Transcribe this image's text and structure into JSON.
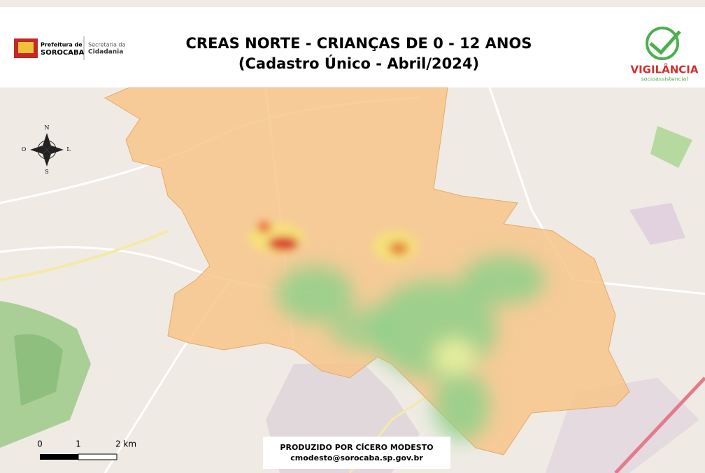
{
  "header": {
    "title_line1": "CREAS NORTE - CRIANÇAS DE 0 - 12 ANOS",
    "title_line2": "(Cadastro Único - Abril/2024)",
    "left_logo": {
      "line1": "Prefeitura de",
      "line2": "SOROCABA",
      "dept1": "Secretaria da",
      "dept2": "Cidadania"
    },
    "right_logo": {
      "name": "VIGILÂNCIA",
      "subtitle": "socioassistencial"
    }
  },
  "map": {
    "compass": {
      "n": "N",
      "s": "S",
      "w": "O",
      "e": "L"
    },
    "scale": {
      "labels": [
        "0",
        "1",
        "2 km"
      ]
    },
    "credit": {
      "line1": "PRODUZIDO POR CÍCERO MODESTO",
      "line2": "cmodesto@sorocaba.sp.gov.br"
    }
  }
}
